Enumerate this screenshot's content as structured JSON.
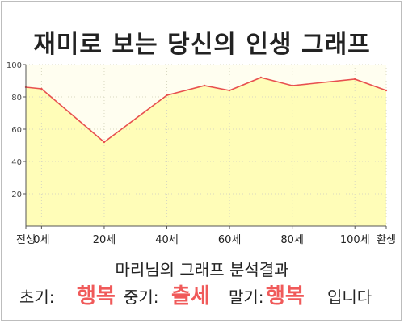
{
  "title": "재미로 보는 당신의 인생 그래프",
  "summary": "마리님의 그래프 분석결과",
  "result": {
    "early_label": "초기:",
    "early_value": "행복",
    "middle_label": "중기:",
    "middle_value": "출세",
    "late_label": "말기:",
    "late_value": "행복",
    "ending": "입니다"
  },
  "colors": {
    "fill": "#fffdb8",
    "line": "#e8504f",
    "plot_bg": "#fffef0",
    "highlight": "#f05a5a"
  },
  "chart_data": {
    "type": "area",
    "x": [
      -5,
      0,
      20,
      40,
      52,
      60,
      70,
      80,
      100,
      110
    ],
    "y": [
      86,
      85,
      52,
      81,
      87,
      84,
      92,
      87,
      91,
      84
    ],
    "xlim": [
      -5,
      110
    ],
    "ylim": [
      0,
      100
    ],
    "yticks": [
      20,
      40,
      60,
      80,
      100
    ],
    "xtick_positions": [
      -5,
      0,
      20,
      40,
      60,
      80,
      100,
      110
    ],
    "xtick_labels": [
      "전생",
      "0세",
      "20세",
      "40세",
      "60세",
      "80세",
      "100세",
      "환생"
    ],
    "grid": true
  }
}
